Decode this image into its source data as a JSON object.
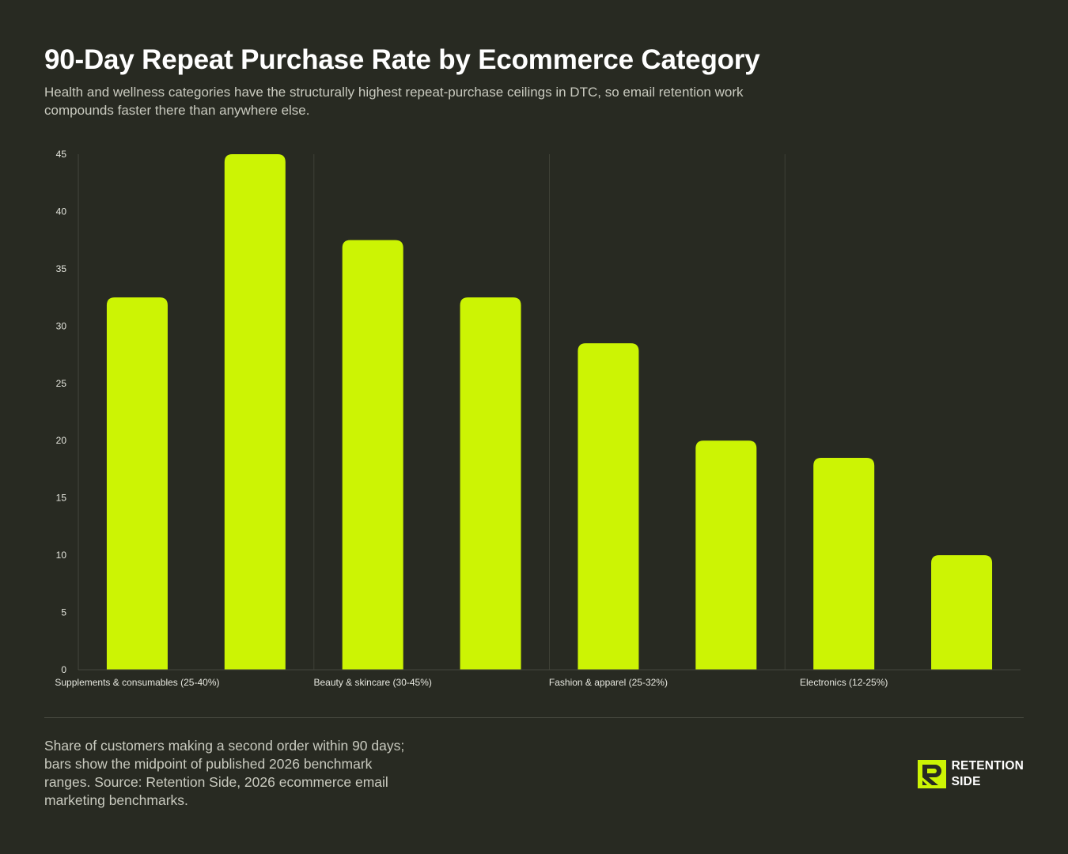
{
  "header": {
    "title": "90-Day Repeat Purchase Rate by Ecommerce Category",
    "subtitle": "Health and wellness categories have the structurally highest repeat-purchase ceilings in DTC, so email retention work compounds faster there than anywhere else."
  },
  "chart_data": {
    "type": "bar",
    "categories": [
      "Supplements & consumables (25-40%)",
      "",
      "Beauty & skincare (30-45%)",
      "",
      "Fashion & apparel (25-32%)",
      "",
      "Electronics (12-25%)",
      ""
    ],
    "values": [
      32.5,
      45,
      37.5,
      32.5,
      28.5,
      20,
      18.5,
      10
    ],
    "ylim": [
      0,
      45
    ],
    "yticks": [
      0,
      5,
      10,
      15,
      20,
      25,
      30,
      35,
      40,
      45
    ],
    "xlabel": "",
    "ylabel": "",
    "grid": "vertical",
    "bar_color": "#ccf404"
  },
  "footer": {
    "note": "Share of customers making a second order within 90 days; bars show the midpoint of published 2026 benchmark ranges. Source: Retention Side, 2026 ecommerce email marketing benchmarks.",
    "brand_line1": "RETENTION",
    "brand_line2": "SIDE",
    "brand_icon": "retention-side-logo-icon"
  },
  "colors": {
    "background": "#282a22",
    "accent": "#ccf404",
    "text": "#ffffff",
    "muted_text": "#c9cabf"
  }
}
